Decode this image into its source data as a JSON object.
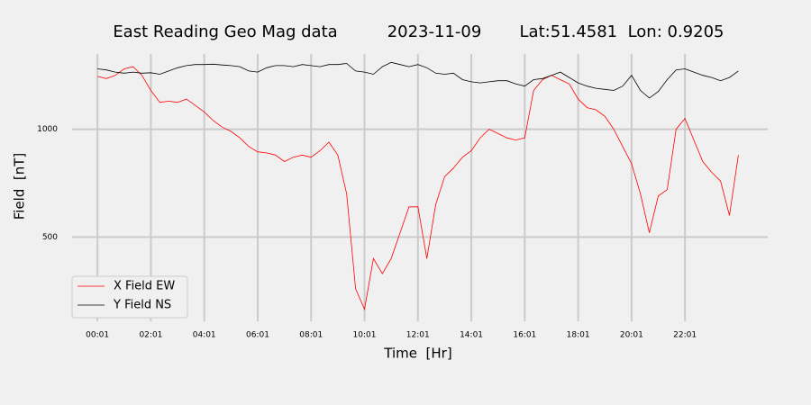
{
  "chart_data": {
    "type": "line",
    "title": "East Reading Geo Mag data",
    "date": "2023-11-09",
    "location": "Lat:51.4581  Lon: 0.9205",
    "x_label": "Time  [Hr]",
    "y_label": "Field  [nT]",
    "x": [
      1,
      21,
      41,
      61,
      81,
      101,
      121,
      141,
      161,
      181,
      201,
      221,
      241,
      261,
      281,
      301,
      321,
      341,
      361,
      381,
      401,
      421,
      441,
      461,
      481,
      501,
      521,
      541,
      561,
      581,
      601,
      621,
      641,
      661,
      681,
      701,
      721,
      741,
      761,
      781,
      801,
      821,
      841,
      861,
      881,
      901,
      921,
      941,
      961,
      981,
      1001,
      1021,
      1041,
      1061,
      1081,
      1101,
      1121,
      1141,
      1161,
      1181,
      1201,
      1221,
      1241,
      1261,
      1281,
      1301,
      1321,
      1341,
      1361,
      1381,
      1401,
      1421,
      1441
    ],
    "series": [
      {
        "name": "X Field EW",
        "color": "#ff0000",
        "values": [
          1245,
          1235,
          1250,
          1280,
          1290,
          1250,
          1180,
          1125,
          1130,
          1125,
          1140,
          1110,
          1080,
          1040,
          1010,
          990,
          960,
          920,
          895,
          890,
          880,
          850,
          870,
          880,
          870,
          900,
          940,
          880,
          700,
          260,
          165,
          400,
          330,
          400,
          520,
          640,
          640,
          400,
          650,
          780,
          820,
          870,
          900,
          960,
          1000,
          980,
          960,
          950,
          960,
          1180,
          1230,
          1250,
          1230,
          1210,
          1140,
          1100,
          1090,
          1060,
          1000,
          920,
          840,
          700,
          520,
          690,
          720,
          1000,
          1050,
          950,
          850,
          800,
          760,
          600,
          880
        ]
      },
      {
        "name": "Y Field NS",
        "color": "#000000",
        "values": [
          1280,
          1275,
          1265,
          1260,
          1265,
          1260,
          1262,
          1255,
          1270,
          1285,
          1295,
          1300,
          1300,
          1302,
          1298,
          1295,
          1290,
          1270,
          1265,
          1285,
          1295,
          1295,
          1290,
          1300,
          1295,
          1290,
          1300,
          1300,
          1305,
          1270,
          1265,
          1255,
          1290,
          1310,
          1300,
          1290,
          1300,
          1285,
          1260,
          1255,
          1260,
          1230,
          1220,
          1215,
          1220,
          1225,
          1225,
          1210,
          1200,
          1230,
          1235,
          1250,
          1265,
          1240,
          1215,
          1200,
          1190,
          1185,
          1180,
          1200,
          1250,
          1180,
          1145,
          1175,
          1230,
          1275,
          1280,
          1265,
          1250,
          1240,
          1225,
          1240,
          1270
        ]
      }
    ],
    "xlim": [
      -56,
      1507
    ],
    "xticks": [
      {
        "value": 1,
        "label": "00:01"
      },
      {
        "value": 121,
        "label": "02:01"
      },
      {
        "value": 241,
        "label": "04:01"
      },
      {
        "value": 361,
        "label": "06:01"
      },
      {
        "value": 481,
        "label": "08:01"
      },
      {
        "value": 601,
        "label": "10:01"
      },
      {
        "value": 721,
        "label": "12:01"
      },
      {
        "value": 841,
        "label": "14:01"
      },
      {
        "value": 961,
        "label": "16:01"
      },
      {
        "value": 1081,
        "label": "18:01"
      },
      {
        "value": 1201,
        "label": "20:01"
      },
      {
        "value": 1321,
        "label": "22:01"
      }
    ],
    "ylim": [
      109,
      1349
    ],
    "yticks": [
      500,
      1000
    ],
    "grid": true,
    "legend": "lower left"
  }
}
